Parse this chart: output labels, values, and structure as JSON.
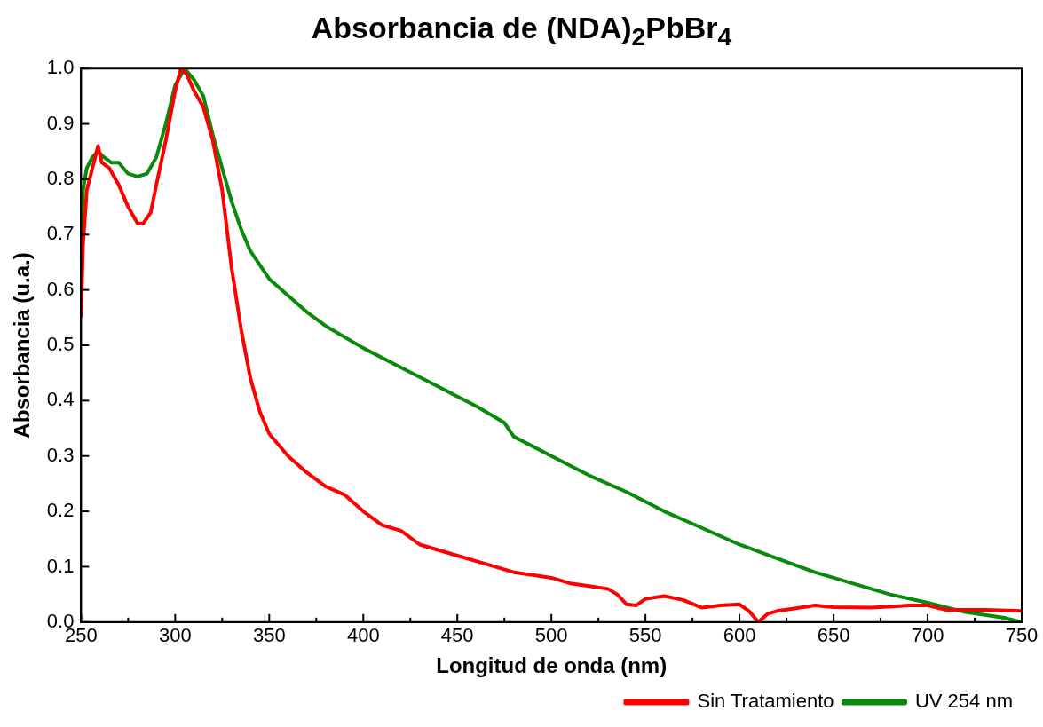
{
  "chart_data": {
    "type": "line",
    "title": "Absorbancia de (NDA)$_{2}$PbBr$_{4}$",
    "xlabel": "Longitud de onda (nm)",
    "ylabel": "Absorbancia (u.a.)",
    "xlim": [
      250,
      750
    ],
    "xticks": [
      250,
      300,
      350,
      400,
      450,
      500,
      550,
      600,
      650,
      700,
      750
    ],
    "ylim": [
      0,
      1.0
    ],
    "yticks": [
      {
        "value": 0,
        "label": "0.0"
      },
      {
        "value": 0.1,
        "label": "0.1"
      },
      {
        "value": 0.2,
        "label": "0.2"
      },
      {
        "value": 0.3,
        "label": "0.3"
      },
      {
        "value": 0.4,
        "label": "0.4"
      },
      {
        "value": 0.5,
        "label": "0.5"
      },
      {
        "value": 0.6,
        "label": "0.6"
      },
      {
        "value": 0.7,
        "label": "0.7"
      },
      {
        "value": 0.8,
        "label": "0.8"
      },
      {
        "value": 0.9,
        "label": "0.9"
      },
      {
        "value": 1.0,
        "label": "1.0"
      }
    ],
    "grid": false,
    "legend": "bottom right",
    "marker": "none",
    "line_style": "solid",
    "series": [
      {
        "name": "Sin Tratamiento",
        "color": "#ff0000",
        "x": [
          250,
          251,
          253,
          256,
          259,
          261,
          265,
          270,
          275,
          280,
          283,
          287,
          290,
          295,
          300,
          303,
          306,
          310,
          315,
          320,
          325,
          330,
          335,
          340,
          345,
          350,
          360,
          370,
          380,
          390,
          400,
          410,
          420,
          430,
          440,
          450,
          460,
          470,
          480,
          490,
          500,
          510,
          520,
          530,
          535,
          540,
          545,
          550,
          560,
          570,
          580,
          590,
          600,
          605,
          610,
          615,
          620,
          630,
          640,
          650,
          670,
          690,
          700,
          710,
          730,
          750
        ],
        "values": [
          0.55,
          0.68,
          0.78,
          0.82,
          0.86,
          0.83,
          0.82,
          0.79,
          0.75,
          0.72,
          0.72,
          0.74,
          0.79,
          0.87,
          0.96,
          1.0,
          0.99,
          0.96,
          0.93,
          0.87,
          0.78,
          0.64,
          0.53,
          0.44,
          0.38,
          0.34,
          0.3,
          0.27,
          0.245,
          0.23,
          0.2,
          0.175,
          0.165,
          0.14,
          0.13,
          0.12,
          0.11,
          0.1,
          0.09,
          0.085,
          0.08,
          0.07,
          0.065,
          0.06,
          0.05,
          0.032,
          0.03,
          0.042,
          0.047,
          0.04,
          0.026,
          0.03,
          0.032,
          0.02,
          0.0,
          0.015,
          0.02,
          0.025,
          0.03,
          0.027,
          0.026,
          0.03,
          0.03,
          0.022,
          0.022,
          0.02
        ]
      },
      {
        "name": "UV 254 nm",
        "color": "#0a8a0a",
        "x": [
          250,
          251,
          253,
          256,
          259,
          262,
          266,
          270,
          275,
          280,
          285,
          290,
          295,
          300,
          305,
          310,
          315,
          320,
          325,
          330,
          335,
          340,
          350,
          360,
          370,
          380,
          400,
          420,
          440,
          460,
          475,
          480,
          500,
          520,
          540,
          560,
          580,
          600,
          620,
          640,
          660,
          680,
          700,
          720,
          740,
          750
        ],
        "values": [
          0.69,
          0.78,
          0.82,
          0.84,
          0.85,
          0.84,
          0.83,
          0.83,
          0.81,
          0.805,
          0.81,
          0.84,
          0.9,
          0.97,
          1.0,
          0.98,
          0.95,
          0.88,
          0.82,
          0.76,
          0.71,
          0.67,
          0.62,
          0.59,
          0.56,
          0.535,
          0.495,
          0.46,
          0.425,
          0.39,
          0.36,
          0.335,
          0.3,
          0.265,
          0.235,
          0.2,
          0.17,
          0.14,
          0.115,
          0.09,
          0.07,
          0.05,
          0.035,
          0.018,
          0.008,
          0.0
        ]
      }
    ]
  }
}
